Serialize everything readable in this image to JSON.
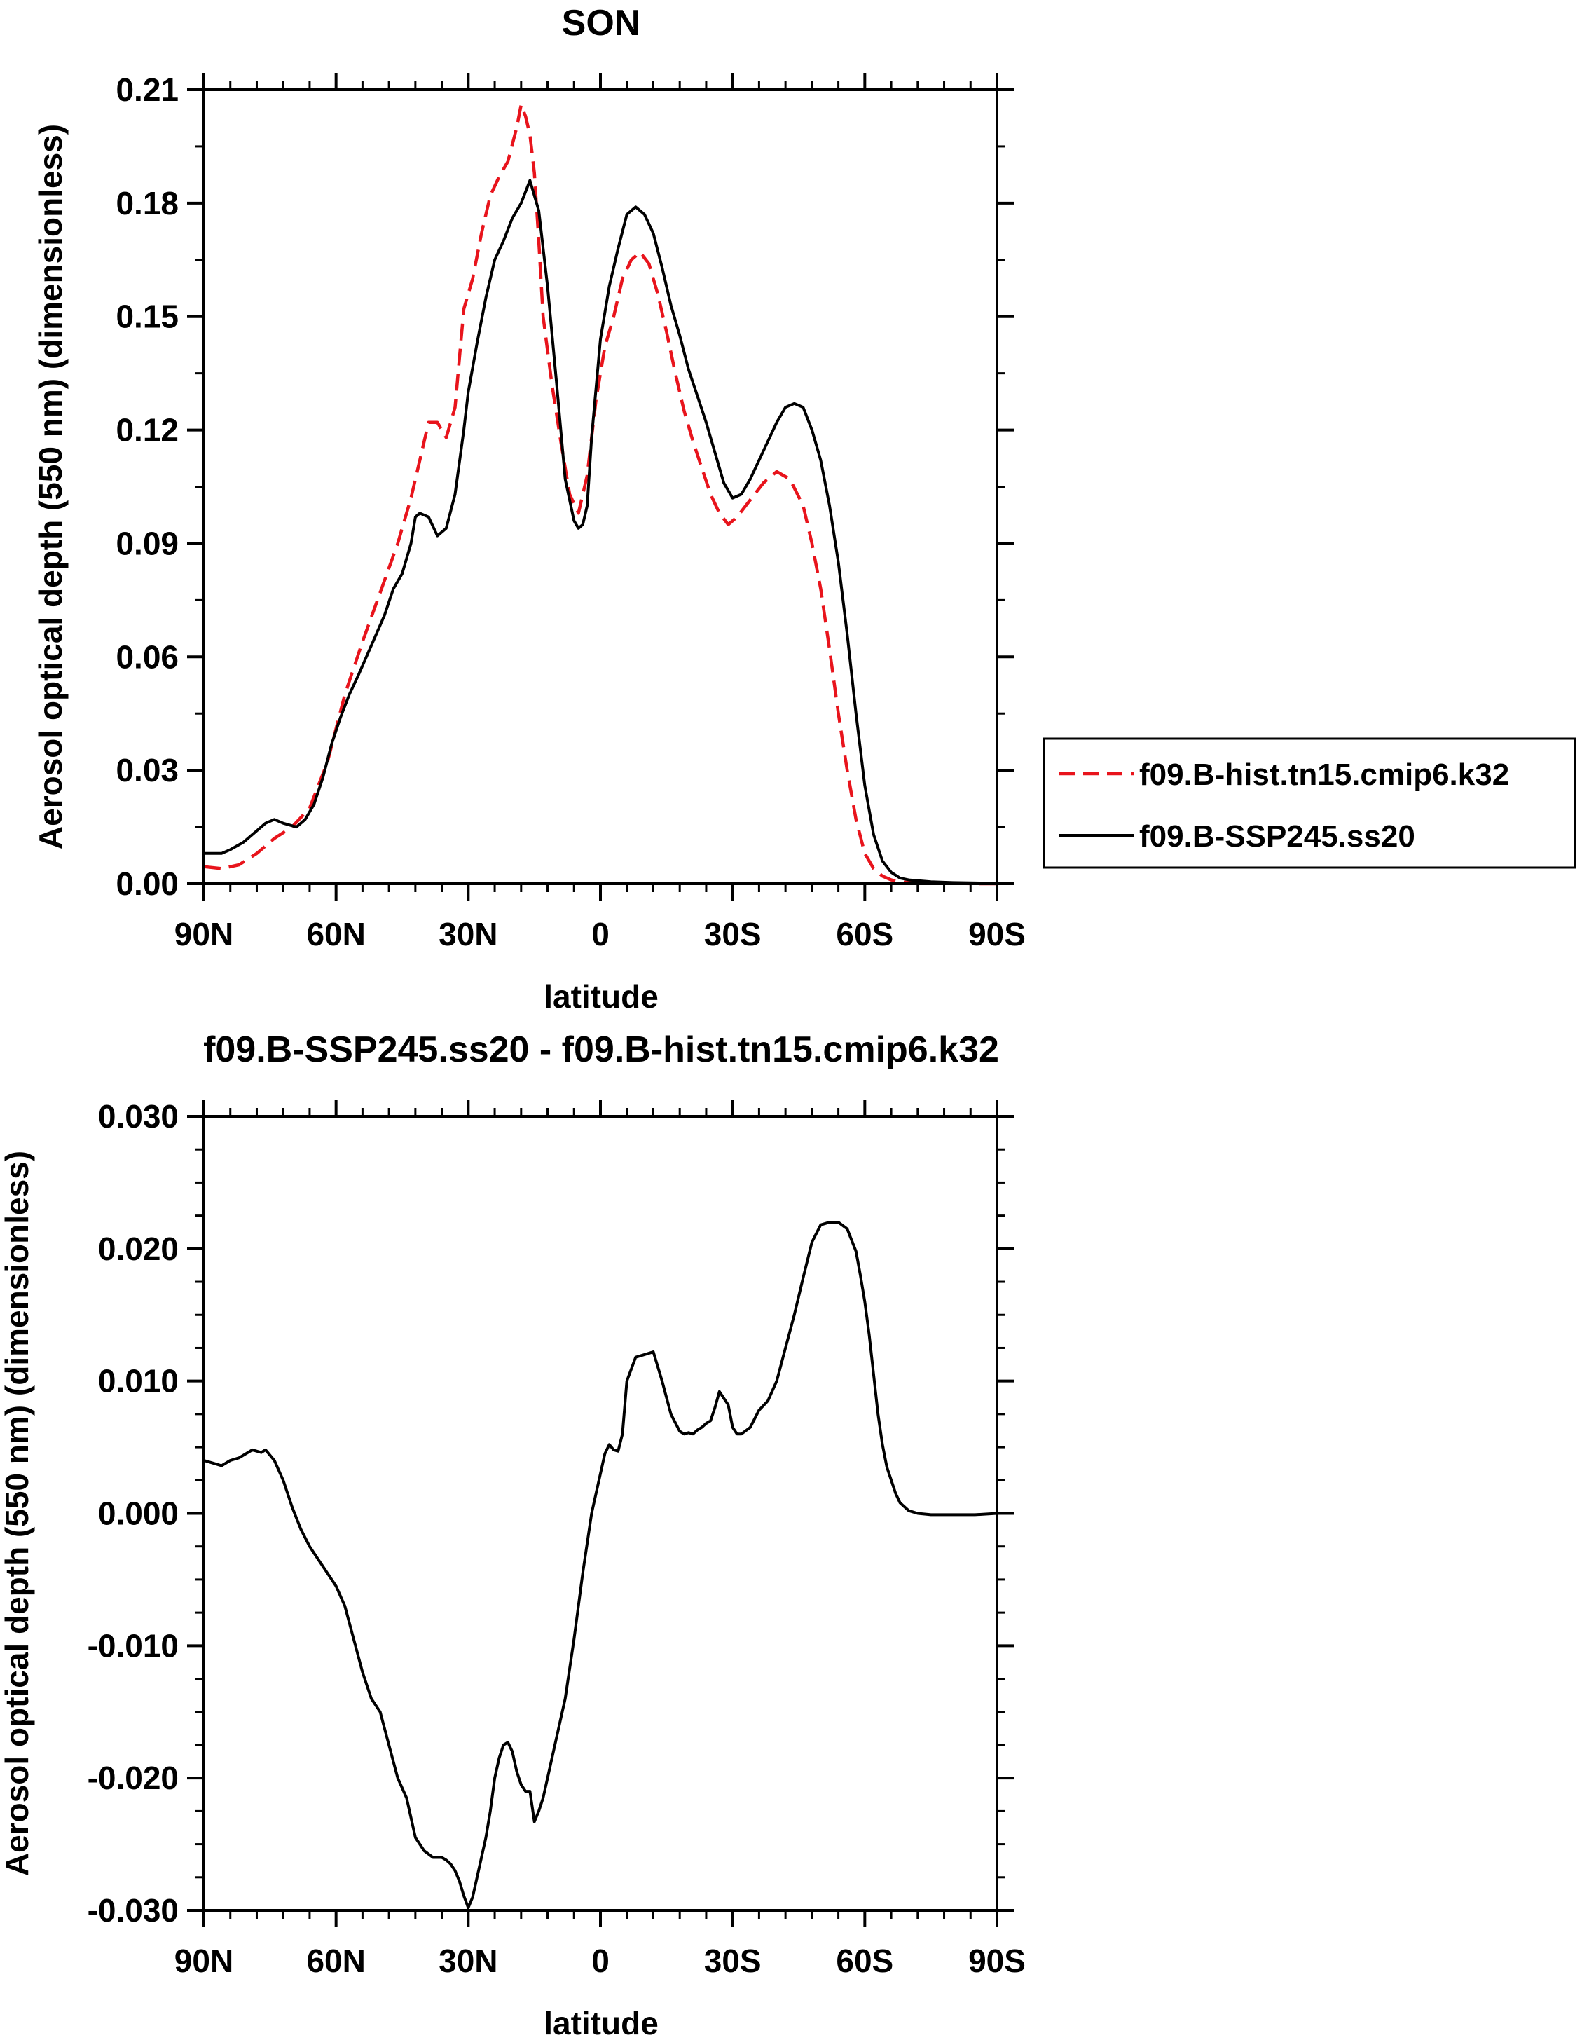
{
  "chart_data": [
    {
      "type": "line",
      "title": "SON",
      "xlabel": "latitude",
      "ylabel": "Aerosol optical depth (550 nm) (dimensionless)",
      "xlim": [
        90,
        -90
      ],
      "ylim": [
        0,
        0.21
      ],
      "xticks": [
        90,
        60,
        30,
        0,
        -30,
        -60,
        -90
      ],
      "xtick_labels": [
        "90N",
        "60N",
        "30N",
        "0",
        "30S",
        "60S",
        "90S"
      ],
      "yticks": [
        0,
        0.03,
        0.06,
        0.09,
        0.12,
        0.15,
        0.18,
        0.21
      ],
      "ytick_labels": [
        "0.00",
        "0.03",
        "0.06",
        "0.09",
        "0.12",
        "0.15",
        "0.18",
        "0.21"
      ],
      "grid": false,
      "legend": "outside right",
      "series": [
        {
          "name": "f09.B-hist.tn15.cmip6.k32",
          "color": "#e8141c",
          "dash": "dashed",
          "x": [
            90,
            86,
            82,
            78,
            74,
            70,
            66,
            62,
            58,
            54,
            50,
            46,
            43,
            41,
            39,
            37,
            35,
            33,
            31,
            29,
            27,
            25,
            23,
            21,
            19,
            18,
            17,
            16,
            15,
            14,
            13,
            11,
            9,
            7,
            5,
            3,
            1,
            -1,
            -3,
            -5,
            -7,
            -9,
            -11,
            -13,
            -15,
            -17,
            -19,
            -21,
            -23,
            -25,
            -27,
            -29,
            -31,
            -33,
            -35,
            -37,
            -40,
            -43,
            -46,
            -48,
            -50,
            -52,
            -54,
            -56,
            -58,
            -60,
            -62,
            -64,
            -66,
            -68,
            -70,
            -72,
            -75,
            -80,
            -85,
            -90
          ],
          "y": [
            0.0045,
            0.004,
            0.005,
            0.008,
            0.012,
            0.015,
            0.02,
            0.032,
            0.05,
            0.064,
            0.077,
            0.09,
            0.102,
            0.112,
            0.122,
            0.122,
            0.118,
            0.126,
            0.152,
            0.16,
            0.172,
            0.182,
            0.187,
            0.191,
            0.2,
            0.206,
            0.203,
            0.198,
            0.188,
            0.17,
            0.15,
            0.132,
            0.117,
            0.103,
            0.098,
            0.108,
            0.128,
            0.142,
            0.15,
            0.16,
            0.165,
            0.167,
            0.164,
            0.156,
            0.146,
            0.135,
            0.125,
            0.117,
            0.11,
            0.103,
            0.098,
            0.095,
            0.097,
            0.1,
            0.103,
            0.106,
            0.109,
            0.107,
            0.1,
            0.09,
            0.078,
            0.062,
            0.045,
            0.03,
            0.017,
            0.008,
            0.004,
            0.002,
            0.001,
            0.0005,
            0.0003,
            0.0002,
            0.0001,
            0.0001,
            0.0,
            0.0
          ]
        },
        {
          "name": "f09.B-SSP245.ss20",
          "color": "#000000",
          "dash": "solid",
          "x": [
            90,
            86,
            84,
            81,
            78,
            76,
            74,
            72,
            69,
            67,
            65,
            63,
            61,
            59,
            57,
            55,
            52,
            49,
            47,
            45,
            43,
            42,
            41,
            39,
            37,
            35,
            33,
            31,
            30,
            28,
            26,
            24,
            22,
            20,
            18,
            16,
            14,
            12,
            10,
            8,
            6,
            5,
            4,
            3,
            2,
            0,
            -2,
            -4,
            -6,
            -8,
            -10,
            -12,
            -14,
            -16,
            -18,
            -20,
            -22,
            -24,
            -26,
            -28,
            -30,
            -32,
            -34,
            -36,
            -38,
            -40,
            -42,
            -44,
            -46,
            -48,
            -50,
            -52,
            -54,
            -56,
            -58,
            -60,
            -62,
            -64,
            -66,
            -68,
            -70,
            -75,
            -80,
            -85,
            -90
          ],
          "y": [
            0.008,
            0.008,
            0.009,
            0.011,
            0.014,
            0.016,
            0.017,
            0.016,
            0.015,
            0.017,
            0.021,
            0.028,
            0.037,
            0.044,
            0.05,
            0.055,
            0.063,
            0.071,
            0.078,
            0.082,
            0.09,
            0.097,
            0.098,
            0.097,
            0.092,
            0.094,
            0.103,
            0.12,
            0.13,
            0.143,
            0.155,
            0.165,
            0.17,
            0.176,
            0.18,
            0.186,
            0.178,
            0.158,
            0.133,
            0.107,
            0.096,
            0.094,
            0.095,
            0.1,
            0.118,
            0.144,
            0.158,
            0.168,
            0.177,
            0.179,
            0.177,
            0.172,
            0.163,
            0.153,
            0.145,
            0.136,
            0.129,
            0.122,
            0.114,
            0.106,
            0.102,
            0.103,
            0.107,
            0.112,
            0.117,
            0.122,
            0.126,
            0.127,
            0.126,
            0.12,
            0.112,
            0.1,
            0.085,
            0.066,
            0.045,
            0.026,
            0.013,
            0.006,
            0.003,
            0.0015,
            0.001,
            0.0005,
            0.0003,
            0.0002,
            0.0001
          ]
        }
      ]
    },
    {
      "type": "line",
      "title": "f09.B-SSP245.ss20 - f09.B-hist.tn15.cmip6.k32",
      "xlabel": "latitude",
      "ylabel": "Aerosol optical depth (550 nm) (dimensionless)",
      "xlim": [
        90,
        -90
      ],
      "ylim": [
        -0.03,
        0.03
      ],
      "xticks": [
        90,
        60,
        30,
        0,
        -30,
        -60,
        -90
      ],
      "xtick_labels": [
        "90N",
        "60N",
        "30N",
        "0",
        "30S",
        "60S",
        "90S"
      ],
      "yticks": [
        -0.03,
        -0.02,
        -0.01,
        0,
        0.01,
        0.02,
        0.03
      ],
      "ytick_labels": [
        "-0.030",
        "-0.020",
        "-0.010",
        "0.000",
        "0.010",
        "0.020",
        "0.030"
      ],
      "grid": false,
      "series": [
        {
          "color": "#000000",
          "dash": "solid",
          "x": [
            90,
            88,
            87,
            86,
            84,
            82,
            79,
            77,
            76,
            74,
            72,
            70,
            68,
            66,
            64,
            62,
            60,
            58,
            56,
            54,
            52,
            50,
            48,
            46,
            44,
            42,
            40,
            38,
            36,
            35,
            34,
            33,
            32,
            31,
            30,
            29,
            28,
            27,
            26,
            25,
            24,
            23,
            22,
            21,
            20,
            19,
            18,
            17,
            16,
            15,
            14,
            13,
            12,
            11,
            10,
            9,
            8,
            6,
            4,
            2,
            1,
            0,
            -1,
            -2,
            -3,
            -4,
            -5,
            -6,
            -8,
            -10,
            -12,
            -14,
            -16,
            -18,
            -19,
            -20,
            -21,
            -22,
            -23,
            -24,
            -25,
            -26,
            -27,
            -28,
            -29,
            -30,
            -31,
            -32,
            -34,
            -36,
            -38,
            -40,
            -42,
            -44,
            -46,
            -48,
            -50,
            -52,
            -54,
            -56,
            -58,
            -59,
            -60,
            -61,
            -62,
            -63,
            -64,
            -65,
            -66,
            -67,
            -68,
            -70,
            -72,
            -75,
            -80,
            -85,
            -90
          ],
          "y": [
            0.004,
            0.0038,
            0.0037,
            0.0036,
            0.004,
            0.0042,
            0.0048,
            0.0046,
            0.0048,
            0.004,
            0.0025,
            0.0005,
            -0.0012,
            -0.0025,
            -0.0035,
            -0.0045,
            -0.0055,
            -0.007,
            -0.0095,
            -0.012,
            -0.014,
            -0.015,
            -0.0175,
            -0.02,
            -0.0215,
            -0.0245,
            -0.0255,
            -0.026,
            -0.026,
            -0.0262,
            -0.0265,
            -0.027,
            -0.0278,
            -0.0289,
            -0.0298,
            -0.029,
            -0.0275,
            -0.026,
            -0.0245,
            -0.0225,
            -0.02,
            -0.0185,
            -0.0175,
            -0.0173,
            -0.018,
            -0.0195,
            -0.0205,
            -0.021,
            -0.021,
            -0.0233,
            -0.0225,
            -0.0215,
            -0.02,
            -0.0185,
            -0.017,
            -0.0155,
            -0.014,
            -0.0095,
            -0.0045,
            0.0,
            0.0015,
            0.003,
            0.0045,
            0.0052,
            0.0048,
            0.0047,
            0.006,
            0.01,
            0.0118,
            0.012,
            0.0122,
            0.01,
            0.0075,
            0.0062,
            0.006,
            0.0061,
            0.006,
            0.0063,
            0.0065,
            0.0068,
            0.007,
            0.008,
            0.0092,
            0.0087,
            0.0082,
            0.0065,
            0.006,
            0.006,
            0.0065,
            0.0078,
            0.0085,
            0.01,
            0.0125,
            0.015,
            0.0178,
            0.0205,
            0.0218,
            0.022,
            0.022,
            0.0215,
            0.0198,
            0.018,
            0.016,
            0.0135,
            0.0105,
            0.0075,
            0.0052,
            0.0035,
            0.0025,
            0.0015,
            0.0008,
            0.0002,
            0.0,
            -0.0001,
            -0.0001,
            -0.0001,
            0.0
          ]
        }
      ]
    }
  ]
}
